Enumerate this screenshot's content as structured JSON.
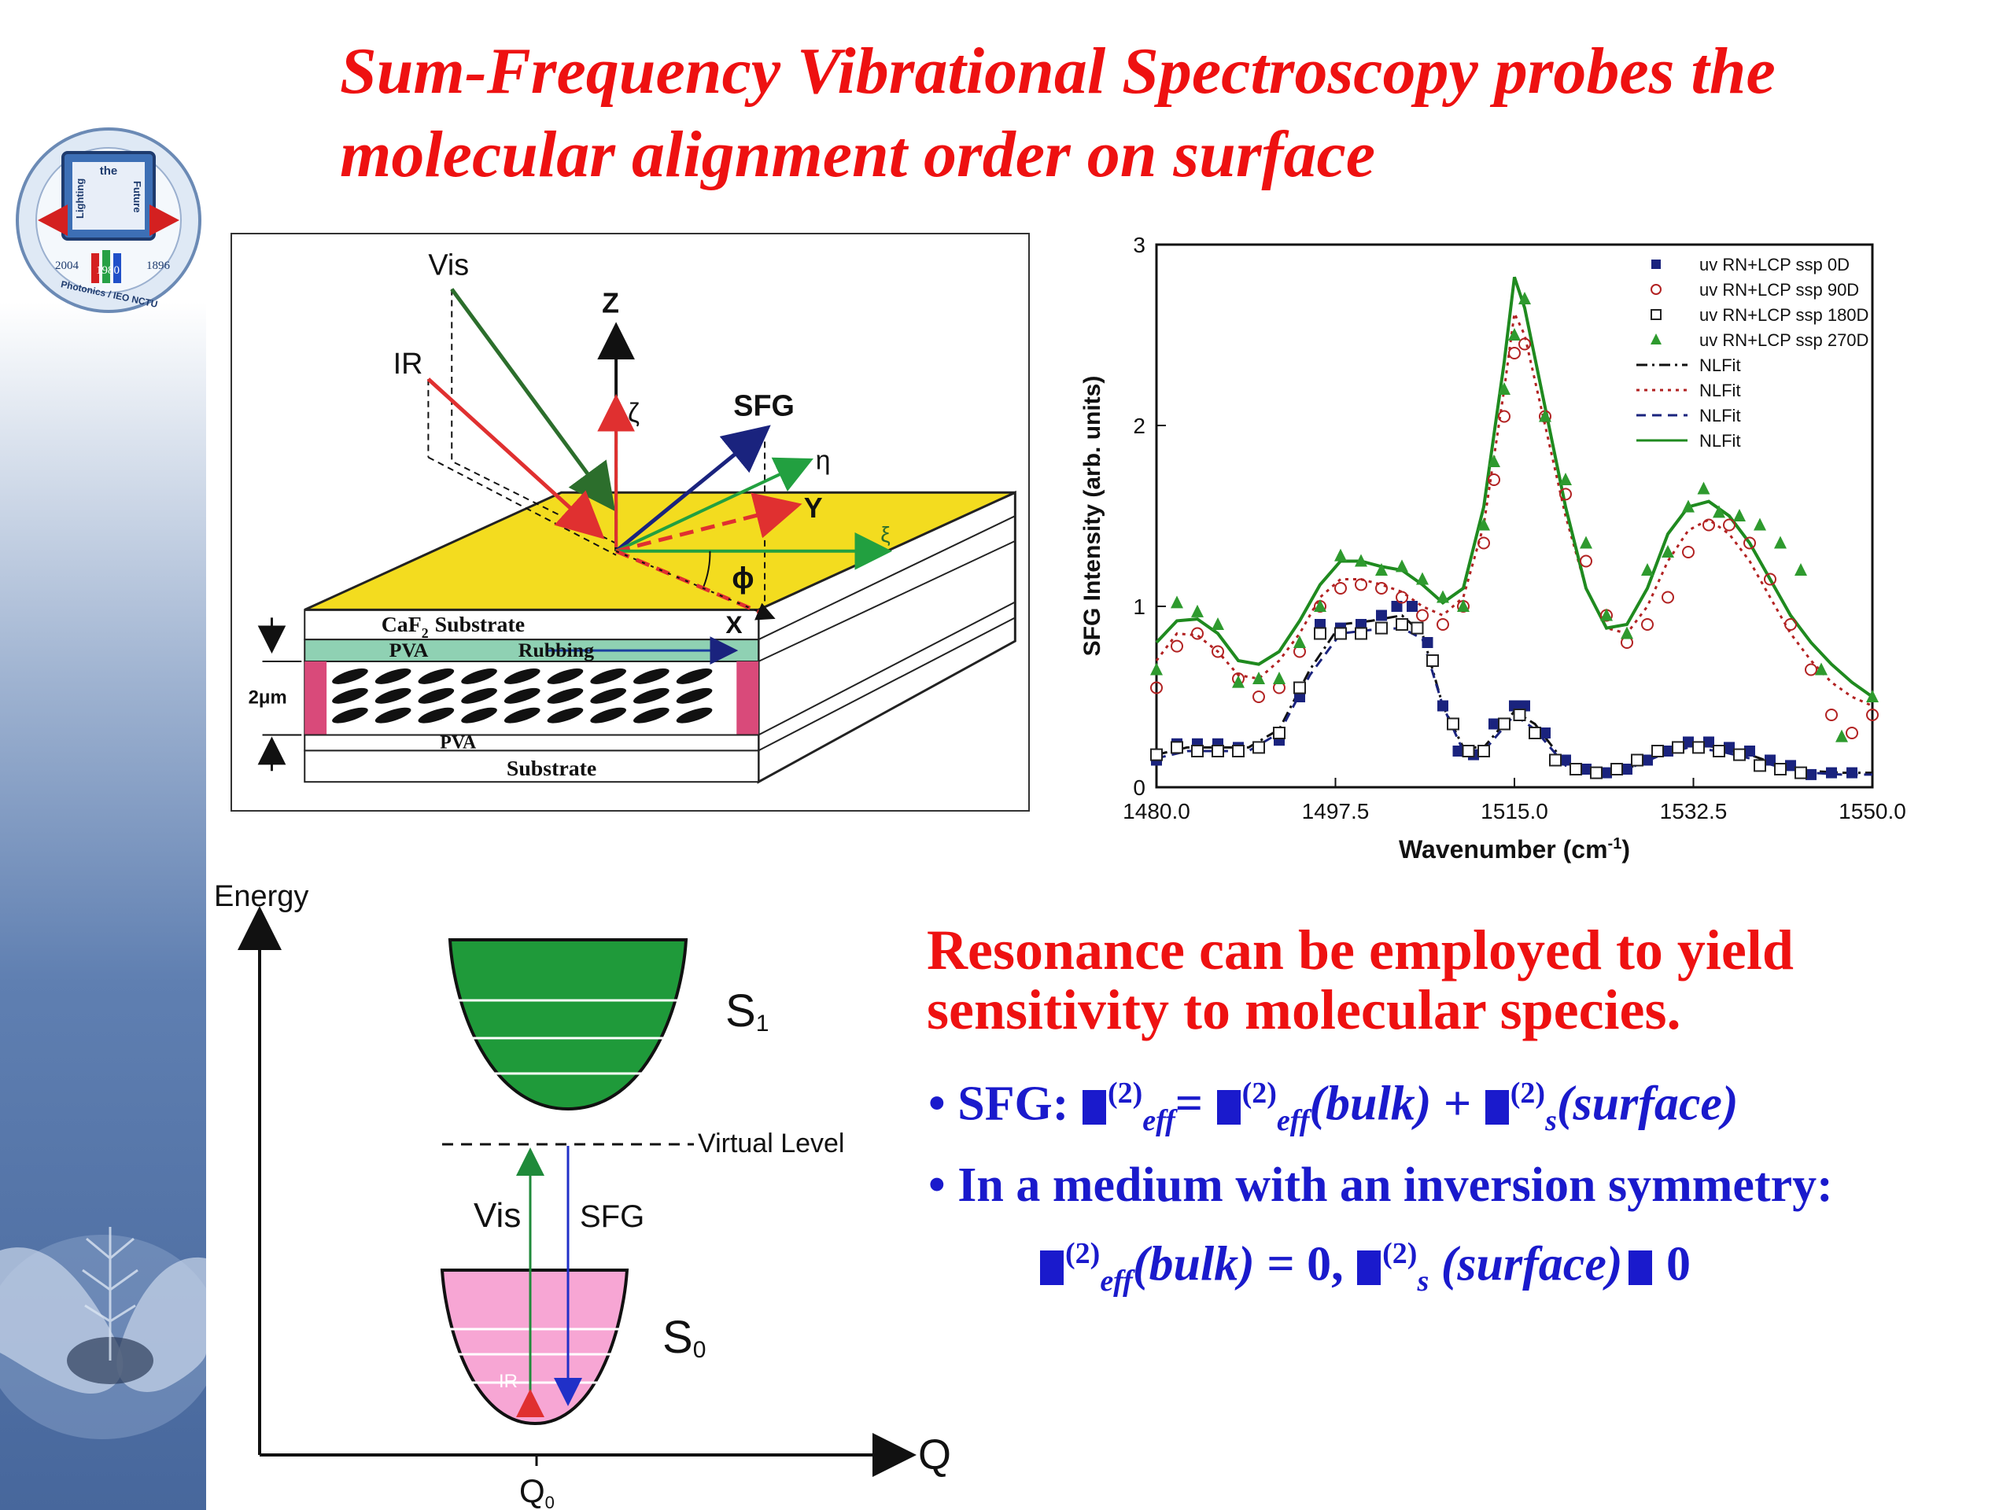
{
  "slide": {
    "title": "Sum-Frequency Vibrational Spectroscopy probes the molecular alignment order on surface"
  },
  "logo": {
    "text_top": "the",
    "text_left": "Lighting",
    "text_right": "Future",
    "year_left": "2004",
    "year_mid": "1980",
    "year_right": "1896",
    "ring_text": "Photonics / IEO NCTU"
  },
  "diagram": {
    "vis": "Vis",
    "ir": "IR",
    "z": "Z",
    "zeta": "ζ",
    "sfg": "SFG",
    "eta": "η",
    "y": "Y",
    "xi": "ξ",
    "phi": "ϕ",
    "x": "X",
    "caf2": "CaF",
    "caf2_sub": "2",
    "caf2_rest": "Substrate",
    "pva_top": "PVA",
    "rubbing": "Rubbing",
    "thickness": "2μm",
    "pva_bottom": "PVA",
    "substrate": "Substrate"
  },
  "chart_data": {
    "type": "scatter",
    "xlabel": "Wavenumber (cm",
    "xlabel_sup": "-1",
    "xlabel_end": ")",
    "ylabel": "SFG Intensity (arb. units)",
    "xlim": [
      1480,
      1550
    ],
    "ylim": [
      0,
      3
    ],
    "xticks": [
      "1480.0",
      "1497.5",
      "1515.0",
      "1532.5",
      "1550.0"
    ],
    "xtick_values": [
      1480,
      1497.5,
      1515,
      1532.5,
      1550
    ],
    "yticks": [
      "0",
      "1",
      "2",
      "3"
    ],
    "ytick_values": [
      0,
      1,
      2,
      3
    ],
    "legend_position": "top-right",
    "series": [
      {
        "name": "uv RN+LCP  ssp 0D",
        "marker": "filled-square",
        "color": "#1a237e",
        "points": [
          [
            1480,
            0.15
          ],
          [
            1482,
            0.24
          ],
          [
            1484,
            0.24
          ],
          [
            1486,
            0.24
          ],
          [
            1488,
            0.22
          ],
          [
            1490,
            0.22
          ],
          [
            1492,
            0.26
          ],
          [
            1494,
            0.5
          ],
          [
            1496,
            0.9
          ],
          [
            1498,
            0.88
          ],
          [
            1500,
            0.9
          ],
          [
            1502,
            0.95
          ],
          [
            1503.5,
            1.0
          ],
          [
            1505,
            1.0
          ],
          [
            1506.5,
            0.8
          ],
          [
            1508,
            0.45
          ],
          [
            1509.5,
            0.2
          ],
          [
            1511,
            0.18
          ],
          [
            1513,
            0.35
          ],
          [
            1515,
            0.45
          ],
          [
            1516,
            0.45
          ],
          [
            1518,
            0.3
          ],
          [
            1520,
            0.15
          ],
          [
            1522,
            0.1
          ],
          [
            1524,
            0.08
          ],
          [
            1526,
            0.1
          ],
          [
            1528,
            0.15
          ],
          [
            1530,
            0.2
          ],
          [
            1532,
            0.25
          ],
          [
            1534,
            0.25
          ],
          [
            1536,
            0.22
          ],
          [
            1538,
            0.2
          ],
          [
            1540,
            0.15
          ],
          [
            1542,
            0.12
          ],
          [
            1544,
            0.07
          ],
          [
            1546,
            0.08
          ],
          [
            1548,
            0.08
          ]
        ]
      },
      {
        "name": "uv RN+LCP ssp 90D",
        "marker": "open-circle",
        "color": "#b22222",
        "points": [
          [
            1480,
            0.55
          ],
          [
            1482,
            0.78
          ],
          [
            1484,
            0.85
          ],
          [
            1486,
            0.75
          ],
          [
            1488,
            0.6
          ],
          [
            1490,
            0.5
          ],
          [
            1492,
            0.55
          ],
          [
            1494,
            0.75
          ],
          [
            1496,
            1.0
          ],
          [
            1498,
            1.1
          ],
          [
            1500,
            1.12
          ],
          [
            1502,
            1.1
          ],
          [
            1504,
            1.05
          ],
          [
            1506,
            0.95
          ],
          [
            1508,
            0.9
          ],
          [
            1510,
            1.0
          ],
          [
            1512,
            1.35
          ],
          [
            1513,
            1.7
          ],
          [
            1514,
            2.05
          ],
          [
            1515,
            2.4
          ],
          [
            1516,
            2.45
          ],
          [
            1518,
            2.05
          ],
          [
            1520,
            1.62
          ],
          [
            1522,
            1.25
          ],
          [
            1524,
            0.95
          ],
          [
            1526,
            0.8
          ],
          [
            1528,
            0.9
          ],
          [
            1530,
            1.05
          ],
          [
            1532,
            1.3
          ],
          [
            1534,
            1.45
          ],
          [
            1536,
            1.45
          ],
          [
            1538,
            1.35
          ],
          [
            1540,
            1.15
          ],
          [
            1542,
            0.9
          ],
          [
            1544,
            0.65
          ],
          [
            1546,
            0.4
          ],
          [
            1548,
            0.3
          ],
          [
            1550,
            0.4
          ]
        ]
      },
      {
        "name": "uv RN+LCP ssp 180D",
        "marker": "open-square",
        "color": "#222222",
        "points": [
          [
            1480,
            0.18
          ],
          [
            1482,
            0.22
          ],
          [
            1484,
            0.2
          ],
          [
            1486,
            0.2
          ],
          [
            1488,
            0.2
          ],
          [
            1490,
            0.22
          ],
          [
            1492,
            0.3
          ],
          [
            1494,
            0.55
          ],
          [
            1496,
            0.85
          ],
          [
            1498,
            0.85
          ],
          [
            1500,
            0.85
          ],
          [
            1502,
            0.88
          ],
          [
            1504,
            0.9
          ],
          [
            1505.5,
            0.88
          ],
          [
            1507,
            0.7
          ],
          [
            1509,
            0.35
          ],
          [
            1510.5,
            0.2
          ],
          [
            1512,
            0.2
          ],
          [
            1514,
            0.35
          ],
          [
            1515.5,
            0.4
          ],
          [
            1517,
            0.3
          ],
          [
            1519,
            0.15
          ],
          [
            1521,
            0.1
          ],
          [
            1523,
            0.08
          ],
          [
            1525,
            0.1
          ],
          [
            1527,
            0.15
          ],
          [
            1529,
            0.2
          ],
          [
            1531,
            0.22
          ],
          [
            1533,
            0.22
          ],
          [
            1535,
            0.2
          ],
          [
            1537,
            0.18
          ],
          [
            1539,
            0.12
          ],
          [
            1541,
            0.1
          ],
          [
            1543,
            0.08
          ]
        ]
      },
      {
        "name": "uv RN+LCP ssp 270D",
        "marker": "filled-triangle",
        "color": "#2e9a2e",
        "points": [
          [
            1480,
            0.65
          ],
          [
            1482,
            1.02
          ],
          [
            1484,
            0.97
          ],
          [
            1486,
            0.9
          ],
          [
            1488,
            0.58
          ],
          [
            1490,
            0.6
          ],
          [
            1492,
            0.6
          ],
          [
            1494,
            0.8
          ],
          [
            1496,
            1.0
          ],
          [
            1498,
            1.28
          ],
          [
            1500,
            1.25
          ],
          [
            1502,
            1.2
          ],
          [
            1504,
            1.22
          ],
          [
            1506,
            1.15
          ],
          [
            1508,
            1.05
          ],
          [
            1510,
            1.0
          ],
          [
            1512,
            1.45
          ],
          [
            1513,
            1.8
          ],
          [
            1514,
            2.2
          ],
          [
            1515,
            2.5
          ],
          [
            1516,
            2.7
          ],
          [
            1518,
            2.05
          ],
          [
            1520,
            1.7
          ],
          [
            1522,
            1.35
          ],
          [
            1524,
            0.95
          ],
          [
            1526,
            0.85
          ],
          [
            1528,
            1.2
          ],
          [
            1530,
            1.3
          ],
          [
            1532,
            1.55
          ],
          [
            1533.5,
            1.65
          ],
          [
            1535,
            1.52
          ],
          [
            1537,
            1.5
          ],
          [
            1539,
            1.45
          ],
          [
            1541,
            1.35
          ],
          [
            1543,
            1.2
          ],
          [
            1545,
            0.65
          ],
          [
            1547,
            0.28
          ],
          [
            1550,
            0.5
          ]
        ]
      }
    ],
    "fits": [
      {
        "name": "NLFit",
        "style": "dash-dot",
        "color": "#111111",
        "points": [
          [
            1480,
            0.18
          ],
          [
            1483,
            0.22
          ],
          [
            1486,
            0.22
          ],
          [
            1489,
            0.22
          ],
          [
            1492,
            0.32
          ],
          [
            1495,
            0.65
          ],
          [
            1498,
            0.9
          ],
          [
            1501,
            0.92
          ],
          [
            1504,
            0.95
          ],
          [
            1506,
            0.85
          ],
          [
            1508,
            0.45
          ],
          [
            1510,
            0.22
          ],
          [
            1512,
            0.22
          ],
          [
            1515,
            0.42
          ],
          [
            1517,
            0.35
          ],
          [
            1520,
            0.13
          ],
          [
            1523,
            0.09
          ],
          [
            1526,
            0.1
          ],
          [
            1529,
            0.18
          ],
          [
            1532,
            0.24
          ],
          [
            1535,
            0.22
          ],
          [
            1538,
            0.18
          ],
          [
            1541,
            0.12
          ],
          [
            1544,
            0.09
          ],
          [
            1547,
            0.08
          ],
          [
            1550,
            0.08
          ]
        ]
      },
      {
        "name": "NLFit",
        "style": "dotted",
        "color": "#b22222",
        "points": [
          [
            1480,
            0.7
          ],
          [
            1482,
            0.85
          ],
          [
            1484,
            0.84
          ],
          [
            1486,
            0.75
          ],
          [
            1488,
            0.62
          ],
          [
            1490,
            0.6
          ],
          [
            1492,
            0.7
          ],
          [
            1494,
            0.85
          ],
          [
            1496,
            1.05
          ],
          [
            1498,
            1.15
          ],
          [
            1500,
            1.15
          ],
          [
            1502,
            1.12
          ],
          [
            1504,
            1.08
          ],
          [
            1506,
            1.0
          ],
          [
            1508,
            0.95
          ],
          [
            1510,
            1.05
          ],
          [
            1512,
            1.45
          ],
          [
            1514,
            2.2
          ],
          [
            1515,
            2.62
          ],
          [
            1516,
            2.5
          ],
          [
            1518,
            2.0
          ],
          [
            1520,
            1.5
          ],
          [
            1522,
            1.1
          ],
          [
            1524,
            0.88
          ],
          [
            1526,
            0.85
          ],
          [
            1528,
            1.0
          ],
          [
            1530,
            1.25
          ],
          [
            1532,
            1.42
          ],
          [
            1534,
            1.48
          ],
          [
            1536,
            1.4
          ],
          [
            1538,
            1.25
          ],
          [
            1540,
            1.05
          ],
          [
            1542,
            0.85
          ],
          [
            1544,
            0.7
          ],
          [
            1546,
            0.58
          ],
          [
            1548,
            0.5
          ],
          [
            1550,
            0.45
          ]
        ]
      },
      {
        "name": "NLFit",
        "style": "dashed",
        "color": "#1a237e",
        "points": [
          [
            1480,
            0.16
          ],
          [
            1483,
            0.2
          ],
          [
            1486,
            0.2
          ],
          [
            1489,
            0.2
          ],
          [
            1492,
            0.3
          ],
          [
            1495,
            0.62
          ],
          [
            1498,
            0.85
          ],
          [
            1501,
            0.87
          ],
          [
            1504,
            0.88
          ],
          [
            1506,
            0.82
          ],
          [
            1508,
            0.45
          ],
          [
            1510,
            0.2
          ],
          [
            1512,
            0.2
          ],
          [
            1515,
            0.4
          ],
          [
            1517,
            0.32
          ],
          [
            1520,
            0.12
          ],
          [
            1523,
            0.08
          ],
          [
            1526,
            0.1
          ],
          [
            1529,
            0.17
          ],
          [
            1532,
            0.22
          ],
          [
            1535,
            0.2
          ],
          [
            1538,
            0.16
          ],
          [
            1541,
            0.11
          ],
          [
            1544,
            0.08
          ],
          [
            1547,
            0.07
          ],
          [
            1550,
            0.07
          ]
        ]
      },
      {
        "name": "NLFit",
        "style": "solid",
        "color": "#1f8a1f",
        "points": [
          [
            1480,
            0.8
          ],
          [
            1482,
            0.92
          ],
          [
            1484,
            0.93
          ],
          [
            1486,
            0.85
          ],
          [
            1488,
            0.7
          ],
          [
            1490,
            0.68
          ],
          [
            1492,
            0.75
          ],
          [
            1494,
            0.92
          ],
          [
            1496,
            1.12
          ],
          [
            1498,
            1.25
          ],
          [
            1500,
            1.25
          ],
          [
            1502,
            1.22
          ],
          [
            1504,
            1.2
          ],
          [
            1506,
            1.12
          ],
          [
            1508,
            1.02
          ],
          [
            1510,
            1.1
          ],
          [
            1512,
            1.55
          ],
          [
            1514,
            2.35
          ],
          [
            1515,
            2.82
          ],
          [
            1516,
            2.65
          ],
          [
            1518,
            2.1
          ],
          [
            1520,
            1.55
          ],
          [
            1522,
            1.1
          ],
          [
            1524,
            0.88
          ],
          [
            1526,
            0.9
          ],
          [
            1528,
            1.1
          ],
          [
            1530,
            1.4
          ],
          [
            1532,
            1.55
          ],
          [
            1534,
            1.58
          ],
          [
            1536,
            1.5
          ],
          [
            1538,
            1.35
          ],
          [
            1540,
            1.15
          ],
          [
            1542,
            0.95
          ],
          [
            1544,
            0.8
          ],
          [
            1546,
            0.68
          ],
          [
            1548,
            0.58
          ],
          [
            1550,
            0.5
          ]
        ]
      }
    ]
  },
  "energy_diagram": {
    "energy_label": "Energy",
    "q_label": "Q",
    "q0": "Q",
    "q0_sub": "0",
    "s1": "S",
    "s1_sub": "1",
    "s0": "S",
    "s0_sub": "0",
    "virtual_level": "Virtual Level",
    "vis": "Vis",
    "sfg": "SFG",
    "ir": "IR",
    "s1_color": "#1f9a3a",
    "s0_color": "#f7a6d4"
  },
  "text": {
    "resonance": "Resonance can be employed to yield sensitivity to molecular species.",
    "b1_prefix": "• SFG: ",
    "b1_sup1": "(2)",
    "b1_sub1": "eff",
    "b1_eq": "= ",
    "b1_sup2": "(2)",
    "b1_sub2": "eff",
    "b1_bulk": "(bulk)",
    "b1_plus": " + ",
    "b1_sup3": "(2)",
    "b1_sub3": "s",
    "b1_surface": "(surface)",
    "b2": "• In a medium with an inversion symmetry:",
    "b3_sup1": "(2)",
    "b3_sub1": "eff",
    "b3_bulk": "(bulk)",
    "b3_eq": " = 0, ",
    "b3_sup2": "(2)",
    "b3_sub2": "s",
    "b3_surface": " (surface)",
    "b3_end": " 0"
  }
}
